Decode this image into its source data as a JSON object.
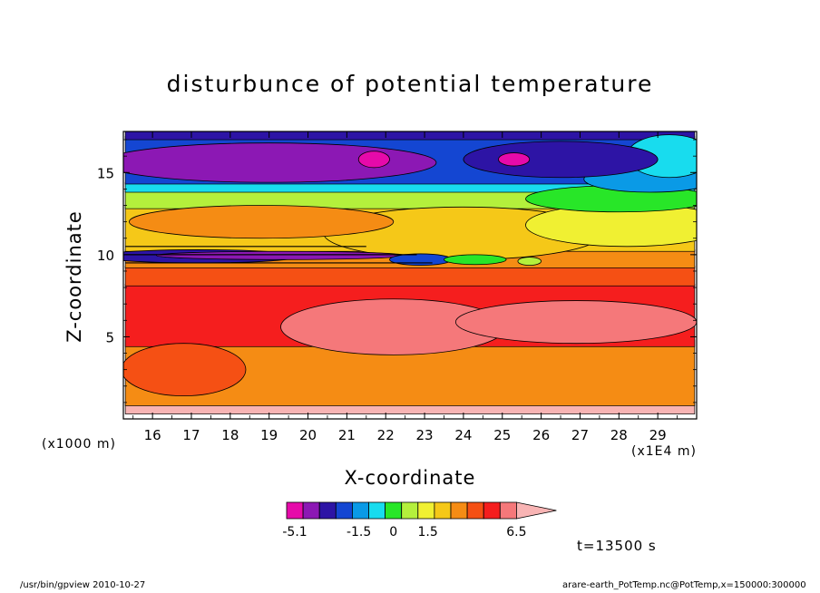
{
  "chart_data": {
    "type": "heatmap",
    "title": "disturbunce of potential temperature",
    "xlabel": "X-coordinate",
    "ylabel": "Z-coordinate",
    "x_ticks": [
      "16",
      "17",
      "18",
      "19",
      "20",
      "21",
      "22",
      "23",
      "24",
      "25",
      "26",
      "27",
      "28",
      "29"
    ],
    "x_tick_values": [
      16,
      17,
      18,
      19,
      20,
      21,
      22,
      23,
      24,
      25,
      26,
      27,
      28,
      29
    ],
    "xlim": [
      15.25,
      30.0
    ],
    "y_ticks": [
      "5",
      "10",
      "15"
    ],
    "y_tick_values": [
      5,
      10,
      15
    ],
    "ylim": [
      0,
      17.5
    ],
    "x_unit_left": "(x1000 m)",
    "x_unit_right": "(x1E4 m)",
    "colorbar": {
      "colors": [
        "#e60aaa",
        "#8c18b4",
        "#2d14a5",
        "#1446d2",
        "#0a9ae6",
        "#18dcee",
        "#28e628",
        "#b4f03c",
        "#f0f032",
        "#f5c818",
        "#f58c14",
        "#f55014",
        "#f51e1e",
        "#f5787a",
        "#f8b4b4"
      ],
      "tick_labels": [
        "-5.1",
        "-1.5",
        "0",
        "1.5",
        "6.5"
      ],
      "tick_boundaries": [
        0,
        5,
        6,
        7,
        10
      ]
    },
    "fields": [
      {
        "level": 14,
        "x": [
          15.3,
          29.95
        ],
        "y": [
          0.3,
          0.9
        ]
      },
      {
        "level": 10,
        "x": [
          15.3,
          29.95
        ],
        "y": [
          0.8,
          4.8
        ]
      },
      {
        "level": 12,
        "x": [
          15.3,
          29.95
        ],
        "y": [
          4.4,
          8.2
        ]
      },
      {
        "level": 11,
        "x": [
          15.3,
          29.95
        ],
        "y": [
          8.1,
          9.3
        ]
      },
      {
        "level": 10,
        "x": [
          15.3,
          29.95
        ],
        "y": [
          9.2,
          10.3
        ]
      },
      {
        "level": 9,
        "x": [
          15.3,
          29.95
        ],
        "y": [
          10.2,
          13.0
        ]
      },
      {
        "level": 7,
        "x": [
          15.3,
          29.95
        ],
        "y": [
          12.8,
          14.0
        ]
      },
      {
        "level": 5,
        "x": [
          15.3,
          29.95
        ],
        "y": [
          13.8,
          14.4
        ]
      },
      {
        "level": 3,
        "x": [
          15.3,
          29.95
        ],
        "y": [
          14.3,
          17.2
        ]
      },
      {
        "level": 2,
        "x": [
          15.3,
          29.95
        ],
        "y": [
          17.0,
          17.5
        ]
      }
    ],
    "blobs": [
      {
        "level": 13,
        "cx": 22.2,
        "cy": 5.6,
        "rx": 2.9,
        "ry": 1.7
      },
      {
        "level": 13,
        "cx": 26.9,
        "cy": 5.9,
        "rx": 3.1,
        "ry": 1.3
      },
      {
        "level": 11,
        "cx": 16.8,
        "cy": 3.0,
        "rx": 1.6,
        "ry": 1.6
      },
      {
        "level": 9,
        "cx": 24.0,
        "cy": 11.3,
        "rx": 3.6,
        "ry": 1.6
      },
      {
        "level": 8,
        "cx": 28.2,
        "cy": 11.8,
        "rx": 2.6,
        "ry": 1.3
      },
      {
        "level": 10,
        "cx": 18.8,
        "cy": 12.0,
        "rx": 3.4,
        "ry": 1.0
      },
      {
        "level": 6,
        "cx": 28.0,
        "cy": 13.4,
        "rx": 2.4,
        "ry": 0.8
      },
      {
        "level": 4,
        "cx": 28.8,
        "cy": 14.6,
        "rx": 1.7,
        "ry": 0.8
      },
      {
        "level": 5,
        "cx": 29.3,
        "cy": 16.0,
        "rx": 1.1,
        "ry": 1.3
      },
      {
        "level": 2,
        "cx": 26.5,
        "cy": 15.8,
        "rx": 2.5,
        "ry": 1.1
      },
      {
        "level": 1,
        "cx": 19.0,
        "cy": 15.6,
        "rx": 4.3,
        "ry": 1.2
      },
      {
        "level": 0,
        "cx": 21.7,
        "cy": 15.8,
        "rx": 0.4,
        "ry": 0.5
      },
      {
        "level": 0,
        "cx": 25.3,
        "cy": 15.8,
        "rx": 0.4,
        "ry": 0.4
      },
      {
        "level": 2,
        "cx": 17.2,
        "cy": 9.9,
        "rx": 2.6,
        "ry": 0.4
      },
      {
        "level": 1,
        "cx": 19.3,
        "cy": 9.95,
        "rx": 3.2,
        "ry": 0.25
      },
      {
        "level": 3,
        "cx": 22.9,
        "cy": 9.7,
        "rx": 0.8,
        "ry": 0.35
      },
      {
        "level": 6,
        "cx": 24.3,
        "cy": 9.7,
        "rx": 0.8,
        "ry": 0.3
      },
      {
        "level": 7,
        "cx": 25.7,
        "cy": 9.6,
        "rx": 0.3,
        "ry": 0.25
      }
    ],
    "lines": [
      {
        "x": [
          15.3,
          22.8
        ],
        "y": 10.0
      },
      {
        "x": [
          15.3,
          21.5
        ],
        "y": 10.5
      },
      {
        "x": [
          15.3,
          23.2
        ],
        "y": 9.5
      }
    ]
  },
  "time_label": "t=13500 s",
  "footer_left": "/usr/bin/gpview  2010-10-27",
  "footer_right": "arare-earth_PotTemp.nc@PotTemp,x=150000:300000"
}
